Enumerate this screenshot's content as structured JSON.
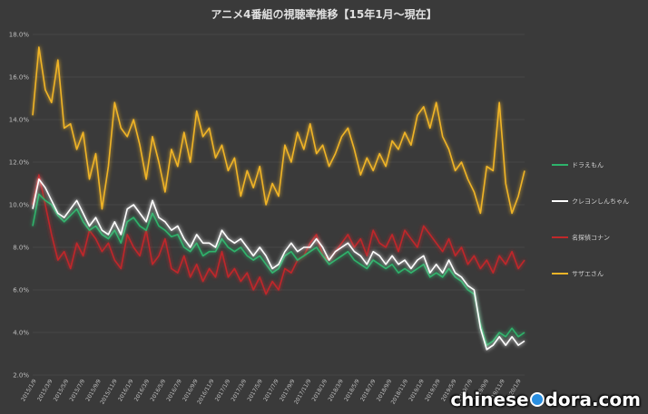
{
  "chart_data": {
    "type": "line",
    "title": "アニメ4番組の視聴率推移【15年1月～現在】",
    "ylim": [
      2.0,
      18.0
    ],
    "yticks": [
      "2.0%",
      "4.0%",
      "6.0%",
      "8.0%",
      "10.0%",
      "12.0%",
      "14.0%",
      "16.0%",
      "18.0%"
    ],
    "xlabels": [
      "2015/1/9",
      "2015/3/9",
      "2015/5/9",
      "2015/7/9",
      "2015/9/9",
      "2015/11/9",
      "2016/1/9",
      "2016/3/9",
      "2016/5/9",
      "2016/7/9",
      "2016/9/9",
      "2016/11/9",
      "2017/1/9",
      "2017/3/9",
      "2017/5/9",
      "2017/7/9",
      "2017/9/9",
      "2017/11/9",
      "2018/1/9",
      "2018/3/9",
      "2018/5/9",
      "2018/7/9",
      "2018/9/9",
      "2018/11/9",
      "2019/1/9",
      "2019/3/9",
      "2019/5/9",
      "2019/7/9",
      "2019/9/9",
      "2019/11/9",
      "2020/1/9"
    ],
    "legend_position": "right",
    "grid": true,
    "series": [
      {
        "name": "ドラえもん",
        "color": "#2db36b",
        "values": [
          9.0,
          10.5,
          10.2,
          10.0,
          9.5,
          9.2,
          9.5,
          9.8,
          9.2,
          8.8,
          9.0,
          8.6,
          8.4,
          8.8,
          8.2,
          9.2,
          9.4,
          9.0,
          8.8,
          9.6,
          9.0,
          8.8,
          8.5,
          8.6,
          8.0,
          7.8,
          8.2,
          7.6,
          7.8,
          7.8,
          8.4,
          8.0,
          7.8,
          8.0,
          7.6,
          7.4,
          7.6,
          7.2,
          6.8,
          7.0,
          7.6,
          7.8,
          7.4,
          7.6,
          7.8,
          8.0,
          7.6,
          7.2,
          7.4,
          7.6,
          7.8,
          7.4,
          7.2,
          7.0,
          7.4,
          7.2,
          7.0,
          7.2,
          6.8,
          7.0,
          6.8,
          7.0,
          7.2,
          6.6,
          6.8,
          6.6,
          7.0,
          6.6,
          6.4,
          6.0,
          5.8,
          4.4,
          3.4,
          3.6,
          4.0,
          3.8,
          4.2,
          3.8,
          4.0
        ]
      },
      {
        "name": "クレヨンしんちゃん",
        "color": "#ffffff",
        "values": [
          9.8,
          11.2,
          10.8,
          10.2,
          9.6,
          9.4,
          9.8,
          10.2,
          9.6,
          9.0,
          9.4,
          8.8,
          8.6,
          9.2,
          8.6,
          9.8,
          10.0,
          9.6,
          9.2,
          10.2,
          9.4,
          9.2,
          8.8,
          9.0,
          8.4,
          8.0,
          8.6,
          8.2,
          8.2,
          8.0,
          8.8,
          8.4,
          8.2,
          8.4,
          8.0,
          7.6,
          8.0,
          7.6,
          7.0,
          7.2,
          7.8,
          8.2,
          7.8,
          8.0,
          8.0,
          8.4,
          8.0,
          7.4,
          7.8,
          8.0,
          8.2,
          7.8,
          7.6,
          7.2,
          7.8,
          7.6,
          7.2,
          7.6,
          7.2,
          7.4,
          7.0,
          7.4,
          7.6,
          6.8,
          7.2,
          6.8,
          7.4,
          6.8,
          6.6,
          6.2,
          6.0,
          4.2,
          3.2,
          3.4,
          3.8,
          3.4,
          3.8,
          3.4,
          3.6
        ]
      },
      {
        "name": "名探偵コナン",
        "color": "#c0282a",
        "values": [
          10.0,
          11.4,
          10.0,
          8.6,
          7.4,
          7.8,
          7.0,
          8.2,
          7.6,
          8.8,
          8.4,
          7.8,
          8.2,
          7.4,
          7.0,
          8.6,
          8.0,
          7.6,
          8.8,
          7.2,
          7.6,
          8.4,
          7.0,
          6.8,
          7.6,
          6.6,
          7.2,
          6.4,
          7.0,
          6.6,
          7.8,
          6.6,
          7.0,
          6.4,
          6.8,
          6.0,
          6.6,
          5.8,
          6.4,
          6.0,
          7.0,
          6.8,
          7.4,
          7.6,
          8.2,
          8.6,
          7.6,
          7.4,
          7.8,
          8.2,
          8.6,
          8.0,
          8.4,
          7.6,
          8.8,
          8.2,
          8.0,
          8.6,
          7.8,
          8.8,
          8.4,
          8.0,
          9.0,
          8.6,
          8.2,
          7.8,
          8.4,
          7.6,
          8.0,
          7.2,
          7.6,
          7.0,
          7.4,
          6.8,
          7.6,
          7.2,
          7.8,
          7.0,
          7.4
        ]
      },
      {
        "name": "サザエさん",
        "color": "#f0b428",
        "values": [
          14.2,
          17.4,
          15.4,
          14.8,
          16.8,
          13.6,
          13.8,
          12.6,
          13.4,
          11.2,
          12.4,
          9.8,
          11.8,
          14.8,
          13.6,
          13.2,
          14.0,
          12.8,
          11.2,
          13.2,
          12.0,
          10.6,
          12.6,
          11.8,
          13.4,
          12.0,
          14.4,
          13.2,
          13.6,
          12.2,
          12.8,
          11.6,
          12.2,
          10.4,
          11.6,
          10.8,
          11.8,
          10.0,
          11.0,
          10.4,
          12.8,
          12.0,
          13.4,
          12.6,
          13.8,
          12.4,
          12.8,
          11.8,
          12.4,
          13.2,
          13.6,
          12.6,
          11.4,
          12.2,
          11.6,
          12.4,
          11.8,
          13.0,
          12.6,
          13.4,
          12.8,
          14.2,
          14.6,
          13.6,
          14.8,
          13.2,
          12.6,
          11.6,
          12.0,
          11.2,
          10.6,
          9.6,
          11.8,
          11.6,
          14.8,
          11.0,
          9.6,
          10.4,
          11.6
        ]
      }
    ]
  },
  "watermark": {
    "pre": "chinese",
    "post": "dora.com"
  }
}
